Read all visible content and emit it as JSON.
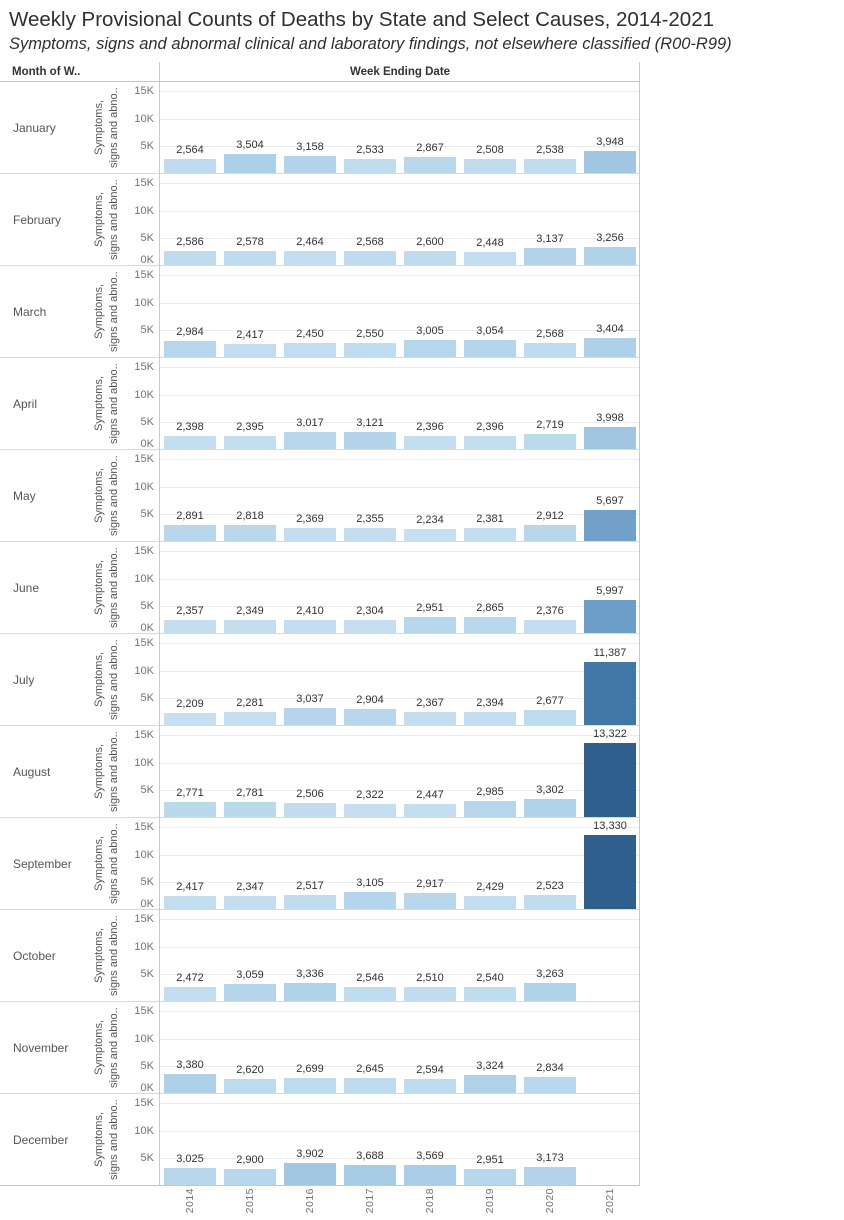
{
  "page": {
    "title": "Weekly Provisional Counts of Deaths by State and Select Causes, 2014-2021",
    "subtitle": "Symptoms, signs and abnormal clinical and laboratory findings, not elsewhere classified (R00-R99)"
  },
  "table_headers": {
    "row_header": "Month of W..",
    "col_header": "Week Ending Date"
  },
  "chart_data": {
    "type": "bar",
    "title": "Weekly Provisional Counts of Deaths by State and Select Causes, 2014-2021",
    "subtitle": "Symptoms, signs and abnormal clinical and laboratory findings, not elsewhere classified (R00-R99)",
    "xlabel": "Week Ending Date",
    "row_field_label": "Month of W..",
    "series_label": "Symptoms, signs and abno..",
    "series_label_lines": [
      "Symptoms,",
      "signs and abno.."
    ],
    "categories": [
      "2014",
      "2015",
      "2016",
      "2017",
      "2018",
      "2019",
      "2020",
      "2021"
    ],
    "ylim": [
      0,
      16600
    ],
    "y_tick_labels_full": [
      "15K",
      "10K",
      "5K",
      "0K"
    ],
    "grid": true,
    "legend": "none",
    "color_domain": [
      2209,
      13330
    ],
    "color_ramp": [
      [
        0.0,
        "#c7e0f1"
      ],
      [
        0.12,
        "#abcfe8"
      ],
      [
        0.32,
        "#6fa0c8"
      ],
      [
        0.84,
        "#4076a7"
      ],
      [
        1.0,
        "#2e5f8d"
      ]
    ],
    "months": [
      {
        "name": "January",
        "ticks": [
          "15K",
          "10K",
          "5K"
        ],
        "values": [
          2564,
          3504,
          3158,
          2533,
          2867,
          2508,
          2538,
          3948
        ]
      },
      {
        "name": "February",
        "ticks": [
          "15K",
          "10K",
          "5K",
          "0K"
        ],
        "values": [
          2586,
          2578,
          2464,
          2568,
          2600,
          2448,
          3137,
          3256
        ]
      },
      {
        "name": "March",
        "ticks": [
          "15K",
          "10K",
          "5K"
        ],
        "values": [
          2984,
          2417,
          2450,
          2550,
          3005,
          3054,
          2568,
          3404
        ]
      },
      {
        "name": "April",
        "ticks": [
          "15K",
          "10K",
          "5K",
          "0K"
        ],
        "values": [
          2398,
          2395,
          3017,
          3121,
          2396,
          2396,
          2719,
          3998
        ]
      },
      {
        "name": "May",
        "ticks": [
          "15K",
          "10K",
          "5K"
        ],
        "values": [
          2891,
          2818,
          2369,
          2355,
          2234,
          2381,
          2912,
          5697
        ]
      },
      {
        "name": "June",
        "ticks": [
          "15K",
          "10K",
          "5K",
          "0K"
        ],
        "values": [
          2357,
          2349,
          2410,
          2304,
          2951,
          2865,
          2376,
          5997
        ]
      },
      {
        "name": "July",
        "ticks": [
          "15K",
          "10K",
          "5K"
        ],
        "values": [
          2209,
          2281,
          3037,
          2904,
          2367,
          2394,
          2677,
          11387
        ]
      },
      {
        "name": "August",
        "ticks": [
          "15K",
          "10K",
          "5K"
        ],
        "values": [
          2771,
          2781,
          2506,
          2322,
          2447,
          2985,
          3302,
          13322
        ]
      },
      {
        "name": "September",
        "ticks": [
          "15K",
          "10K",
          "5K",
          "0K"
        ],
        "values": [
          2417,
          2347,
          2517,
          3105,
          2917,
          2429,
          2523,
          13330
        ]
      },
      {
        "name": "October",
        "ticks": [
          "15K",
          "10K",
          "5K"
        ],
        "values": [
          2472,
          3059,
          3336,
          2546,
          2510,
          2540,
          3263
        ]
      },
      {
        "name": "November",
        "ticks": [
          "15K",
          "10K",
          "5K",
          "0K"
        ],
        "values": [
          3380,
          2620,
          2699,
          2645,
          2594,
          3324,
          2834
        ]
      },
      {
        "name": "December",
        "ticks": [
          "15K",
          "10K",
          "5K"
        ],
        "values": [
          3025,
          2900,
          3902,
          3688,
          3569,
          2951,
          3173
        ]
      }
    ]
  }
}
